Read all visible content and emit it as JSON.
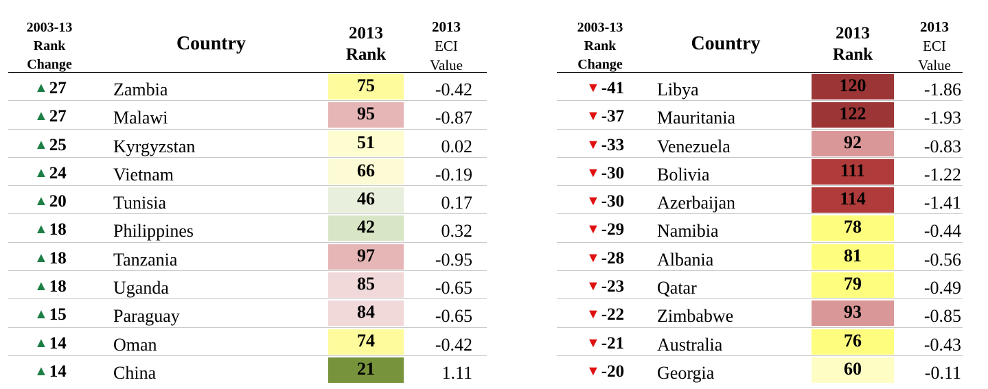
{
  "headers": {
    "change": [
      "2003-13",
      "Rank",
      "Change"
    ],
    "country": "Country",
    "rank": [
      "2013",
      "Rank"
    ],
    "eci": [
      "2013",
      "ECI",
      "Value"
    ]
  },
  "colors": {
    "up_arrow": "#1e7f46",
    "down_arrow": "#e01010"
  },
  "left_table": {
    "rows": [
      {
        "change": "27",
        "dir": "up",
        "country": "Zambia",
        "rank": "75",
        "eci": "-0.42",
        "color": "#fdfb9c"
      },
      {
        "change": "27",
        "dir": "up",
        "country": "Malawi",
        "rank": "95",
        "eci": "-0.87",
        "color": "#e6b6b6"
      },
      {
        "change": "25",
        "dir": "up",
        "country": "Kyrgyzstan",
        "rank": "51",
        "eci": "0.02",
        "color": "#fefdd0"
      },
      {
        "change": "24",
        "dir": "up",
        "country": "Vietnam",
        "rank": "66",
        "eci": "-0.19",
        "color": "#fcfbd6"
      },
      {
        "change": "20",
        "dir": "up",
        "country": "Tunisia",
        "rank": "46",
        "eci": "0.17",
        "color": "#e8efdc"
      },
      {
        "change": "18",
        "dir": "up",
        "country": "Philippines",
        "rank": "42",
        "eci": "0.32",
        "color": "#d9e6c6"
      },
      {
        "change": "18",
        "dir": "up",
        "country": "Tanzania",
        "rank": "97",
        "eci": "-0.95",
        "color": "#e6b6b6"
      },
      {
        "change": "18",
        "dir": "up",
        "country": "Uganda",
        "rank": "85",
        "eci": "-0.65",
        "color": "#f1d9d9"
      },
      {
        "change": "15",
        "dir": "up",
        "country": "Paraguay",
        "rank": "84",
        "eci": "-0.65",
        "color": "#f1d9d9"
      },
      {
        "change": "14",
        "dir": "up",
        "country": "Oman",
        "rank": "74",
        "eci": "-0.42",
        "color": "#fdfb9c"
      },
      {
        "change": "14",
        "dir": "up",
        "country": "China",
        "rank": "21",
        "eci": "1.11",
        "color": "#77933c"
      }
    ]
  },
  "right_table": {
    "rows": [
      {
        "change": "-41",
        "dir": "down",
        "country": "Libya",
        "rank": "120",
        "eci": "-1.86",
        "color": "#9c3535"
      },
      {
        "change": "-37",
        "dir": "down",
        "country": "Mauritania",
        "rank": "122",
        "eci": "-1.93",
        "color": "#9c3535"
      },
      {
        "change": "-33",
        "dir": "down",
        "country": "Venezuela",
        "rank": "92",
        "eci": "-0.83",
        "color": "#da9797"
      },
      {
        "change": "-30",
        "dir": "down",
        "country": "Bolivia",
        "rank": "111",
        "eci": "-1.22",
        "color": "#b03b3b"
      },
      {
        "change": "-30",
        "dir": "down",
        "country": "Azerbaijan",
        "rank": "114",
        "eci": "-1.41",
        "color": "#b03b3b"
      },
      {
        "change": "-29",
        "dir": "down",
        "country": "Namibia",
        "rank": "78",
        "eci": "-0.44",
        "color": "#fefd7e"
      },
      {
        "change": "-28",
        "dir": "down",
        "country": "Albania",
        "rank": "81",
        "eci": "-0.56",
        "color": "#fefd7e"
      },
      {
        "change": "-23",
        "dir": "down",
        "country": "Qatar",
        "rank": "79",
        "eci": "-0.49",
        "color": "#fefd7e"
      },
      {
        "change": "-22",
        "dir": "down",
        "country": "Zimbabwe",
        "rank": "93",
        "eci": "-0.85",
        "color": "#da9797"
      },
      {
        "change": "-21",
        "dir": "down",
        "country": "Australia",
        "rank": "76",
        "eci": "-0.43",
        "color": "#fefd7e"
      },
      {
        "change": "-20",
        "dir": "down",
        "country": "Georgia",
        "rank": "60",
        "eci": "-0.11",
        "color": "#fefdc4"
      }
    ]
  }
}
